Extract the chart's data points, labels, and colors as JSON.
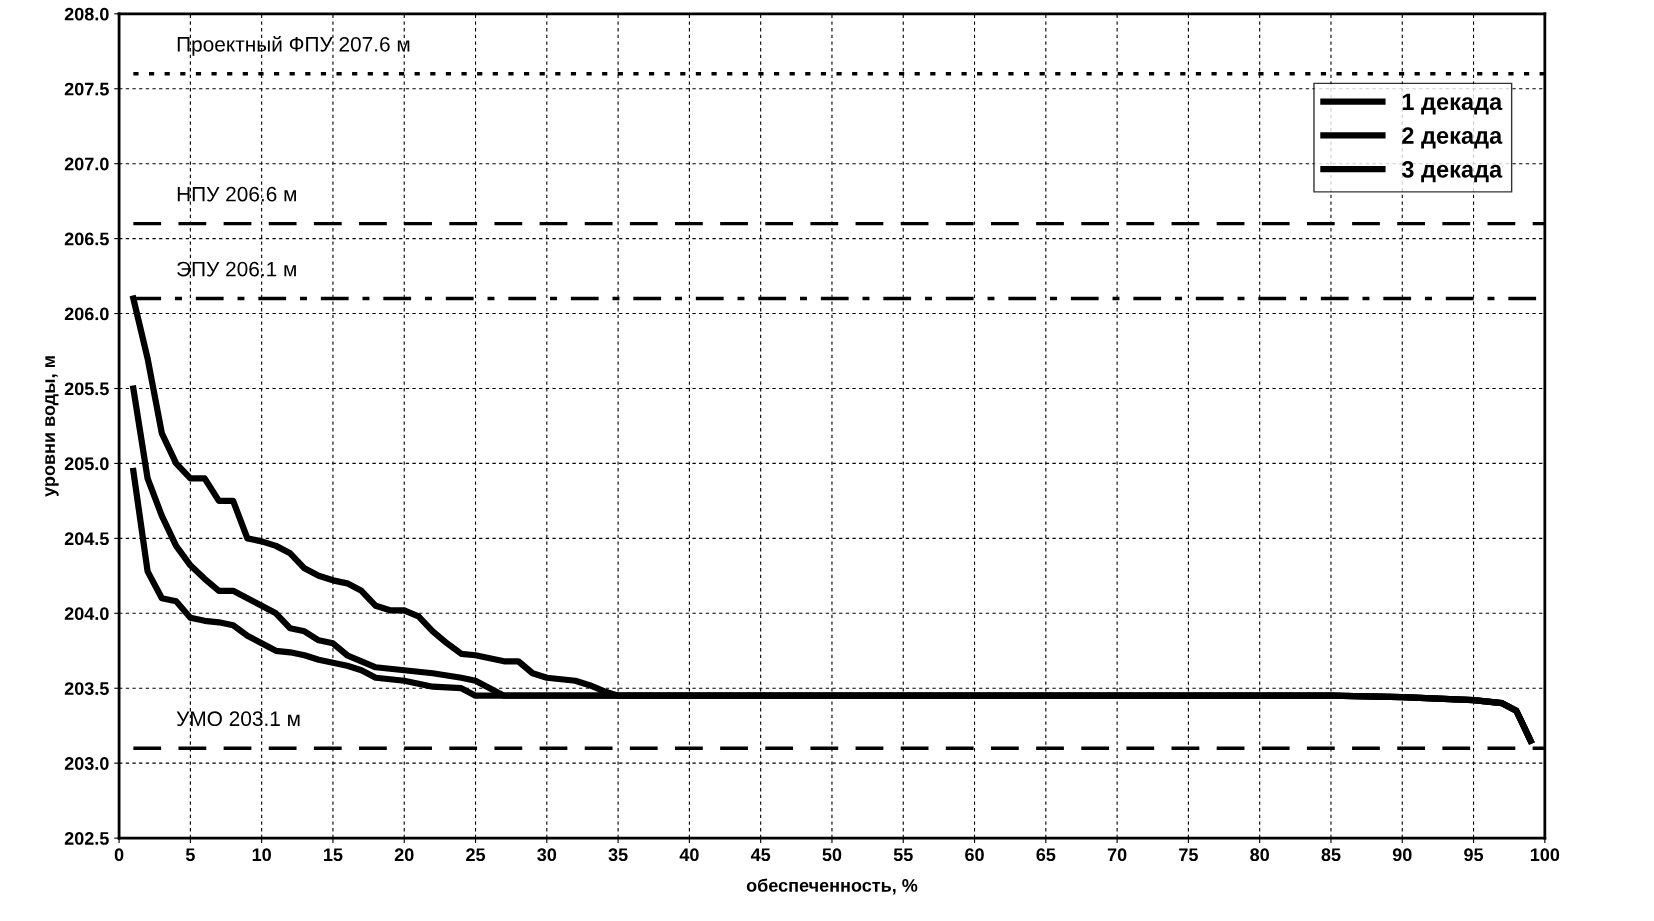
{
  "chart_data": {
    "type": "line",
    "xlabel": "обеспеченность, %",
    "ylabel": "уровни воды, м",
    "xlim": [
      0,
      100
    ],
    "ylim": [
      202.5,
      208
    ],
    "xticks": [
      0,
      5,
      10,
      15,
      20,
      25,
      30,
      35,
      40,
      45,
      50,
      55,
      60,
      65,
      70,
      75,
      80,
      85,
      90,
      95,
      100
    ],
    "yticks": [
      202.5,
      {
        "value": 203,
        "label": "203.0"
      },
      203.5,
      {
        "value": 204,
        "label": "204.0"
      },
      204.5,
      {
        "value": 205,
        "label": "205.0"
      },
      205.5,
      {
        "value": 206,
        "label": "206.0"
      },
      206.5,
      {
        "value": 207,
        "label": "207.0"
      },
      207.5,
      {
        "value": 208,
        "label": "208.0"
      }
    ],
    "grid": true,
    "legend": "top right",
    "marker": "none",
    "line_style": "solid",
    "series": [
      {
        "name": "1 декада",
        "color": "#000000",
        "x": [
          1,
          2,
          3,
          4,
          5,
          6,
          7,
          8,
          9,
          10,
          11,
          12,
          13,
          14,
          15,
          16,
          17,
          18,
          19,
          20,
          21,
          22,
          23,
          24,
          25,
          26,
          27,
          28,
          29,
          30,
          32,
          33,
          34,
          35,
          85,
          90,
          95,
          97,
          98,
          99
        ],
        "values": [
          206.1,
          205.7,
          205.2,
          205.0,
          204.9,
          204.9,
          204.75,
          204.75,
          204.5,
          204.48,
          204.45,
          204.4,
          204.3,
          204.25,
          204.22,
          204.2,
          204.15,
          204.05,
          204.02,
          204.02,
          203.98,
          203.88,
          203.8,
          203.73,
          203.72,
          203.7,
          203.68,
          203.68,
          203.6,
          203.57,
          203.55,
          203.52,
          203.48,
          203.45,
          203.45,
          203.44,
          203.42,
          203.4,
          203.35,
          203.15
        ]
      },
      {
        "name": "2 декада",
        "color": "#000000",
        "x": [
          1,
          2,
          3,
          4,
          5,
          6,
          7,
          8,
          9,
          10,
          11,
          12,
          13,
          14,
          15,
          16,
          17,
          18,
          20,
          22,
          24,
          25,
          26,
          27,
          35,
          85,
          90,
          95,
          97,
          98,
          99
        ],
        "values": [
          205.5,
          204.9,
          204.65,
          204.45,
          204.32,
          204.23,
          204.15,
          204.15,
          204.1,
          204.05,
          204.0,
          203.9,
          203.88,
          203.82,
          203.8,
          203.72,
          203.68,
          203.64,
          203.62,
          203.6,
          203.57,
          203.55,
          203.5,
          203.45,
          203.45,
          203.45,
          203.44,
          203.42,
          203.4,
          203.35,
          203.15
        ]
      },
      {
        "name": "3 декада",
        "color": "#000000",
        "x": [
          1,
          2,
          3,
          4,
          5,
          6,
          7,
          8,
          9,
          10,
          11,
          12,
          13,
          14,
          15,
          16,
          17,
          18,
          20,
          22,
          24,
          25,
          35,
          85,
          90,
          95,
          97,
          98,
          99
        ],
        "values": [
          204.95,
          204.28,
          204.1,
          204.08,
          203.97,
          203.95,
          203.94,
          203.92,
          203.85,
          203.8,
          203.75,
          203.74,
          203.72,
          203.69,
          203.67,
          203.65,
          203.62,
          203.57,
          203.55,
          203.51,
          203.5,
          203.45,
          203.45,
          203.45,
          203.44,
          203.42,
          203.4,
          203.35,
          203.15
        ]
      }
    ],
    "ref_lines": [
      {
        "axis": "y",
        "value": 207.6,
        "label": "Проектный ФПУ 207.6 м",
        "color": "#000000",
        "line_style": "dotted"
      },
      {
        "axis": "y",
        "value": 206.6,
        "label": "НПУ 206.6 м",
        "color": "#000000",
        "line_style": "dashed"
      },
      {
        "axis": "y",
        "value": 206.1,
        "label": "ЭПУ 206.1 м",
        "color": "#000000",
        "line_style": "dashdot"
      },
      {
        "axis": "y",
        "value": 203.1,
        "label": "УМО 203.1 м",
        "color": "#000000",
        "line_style": "dashed"
      }
    ]
  }
}
